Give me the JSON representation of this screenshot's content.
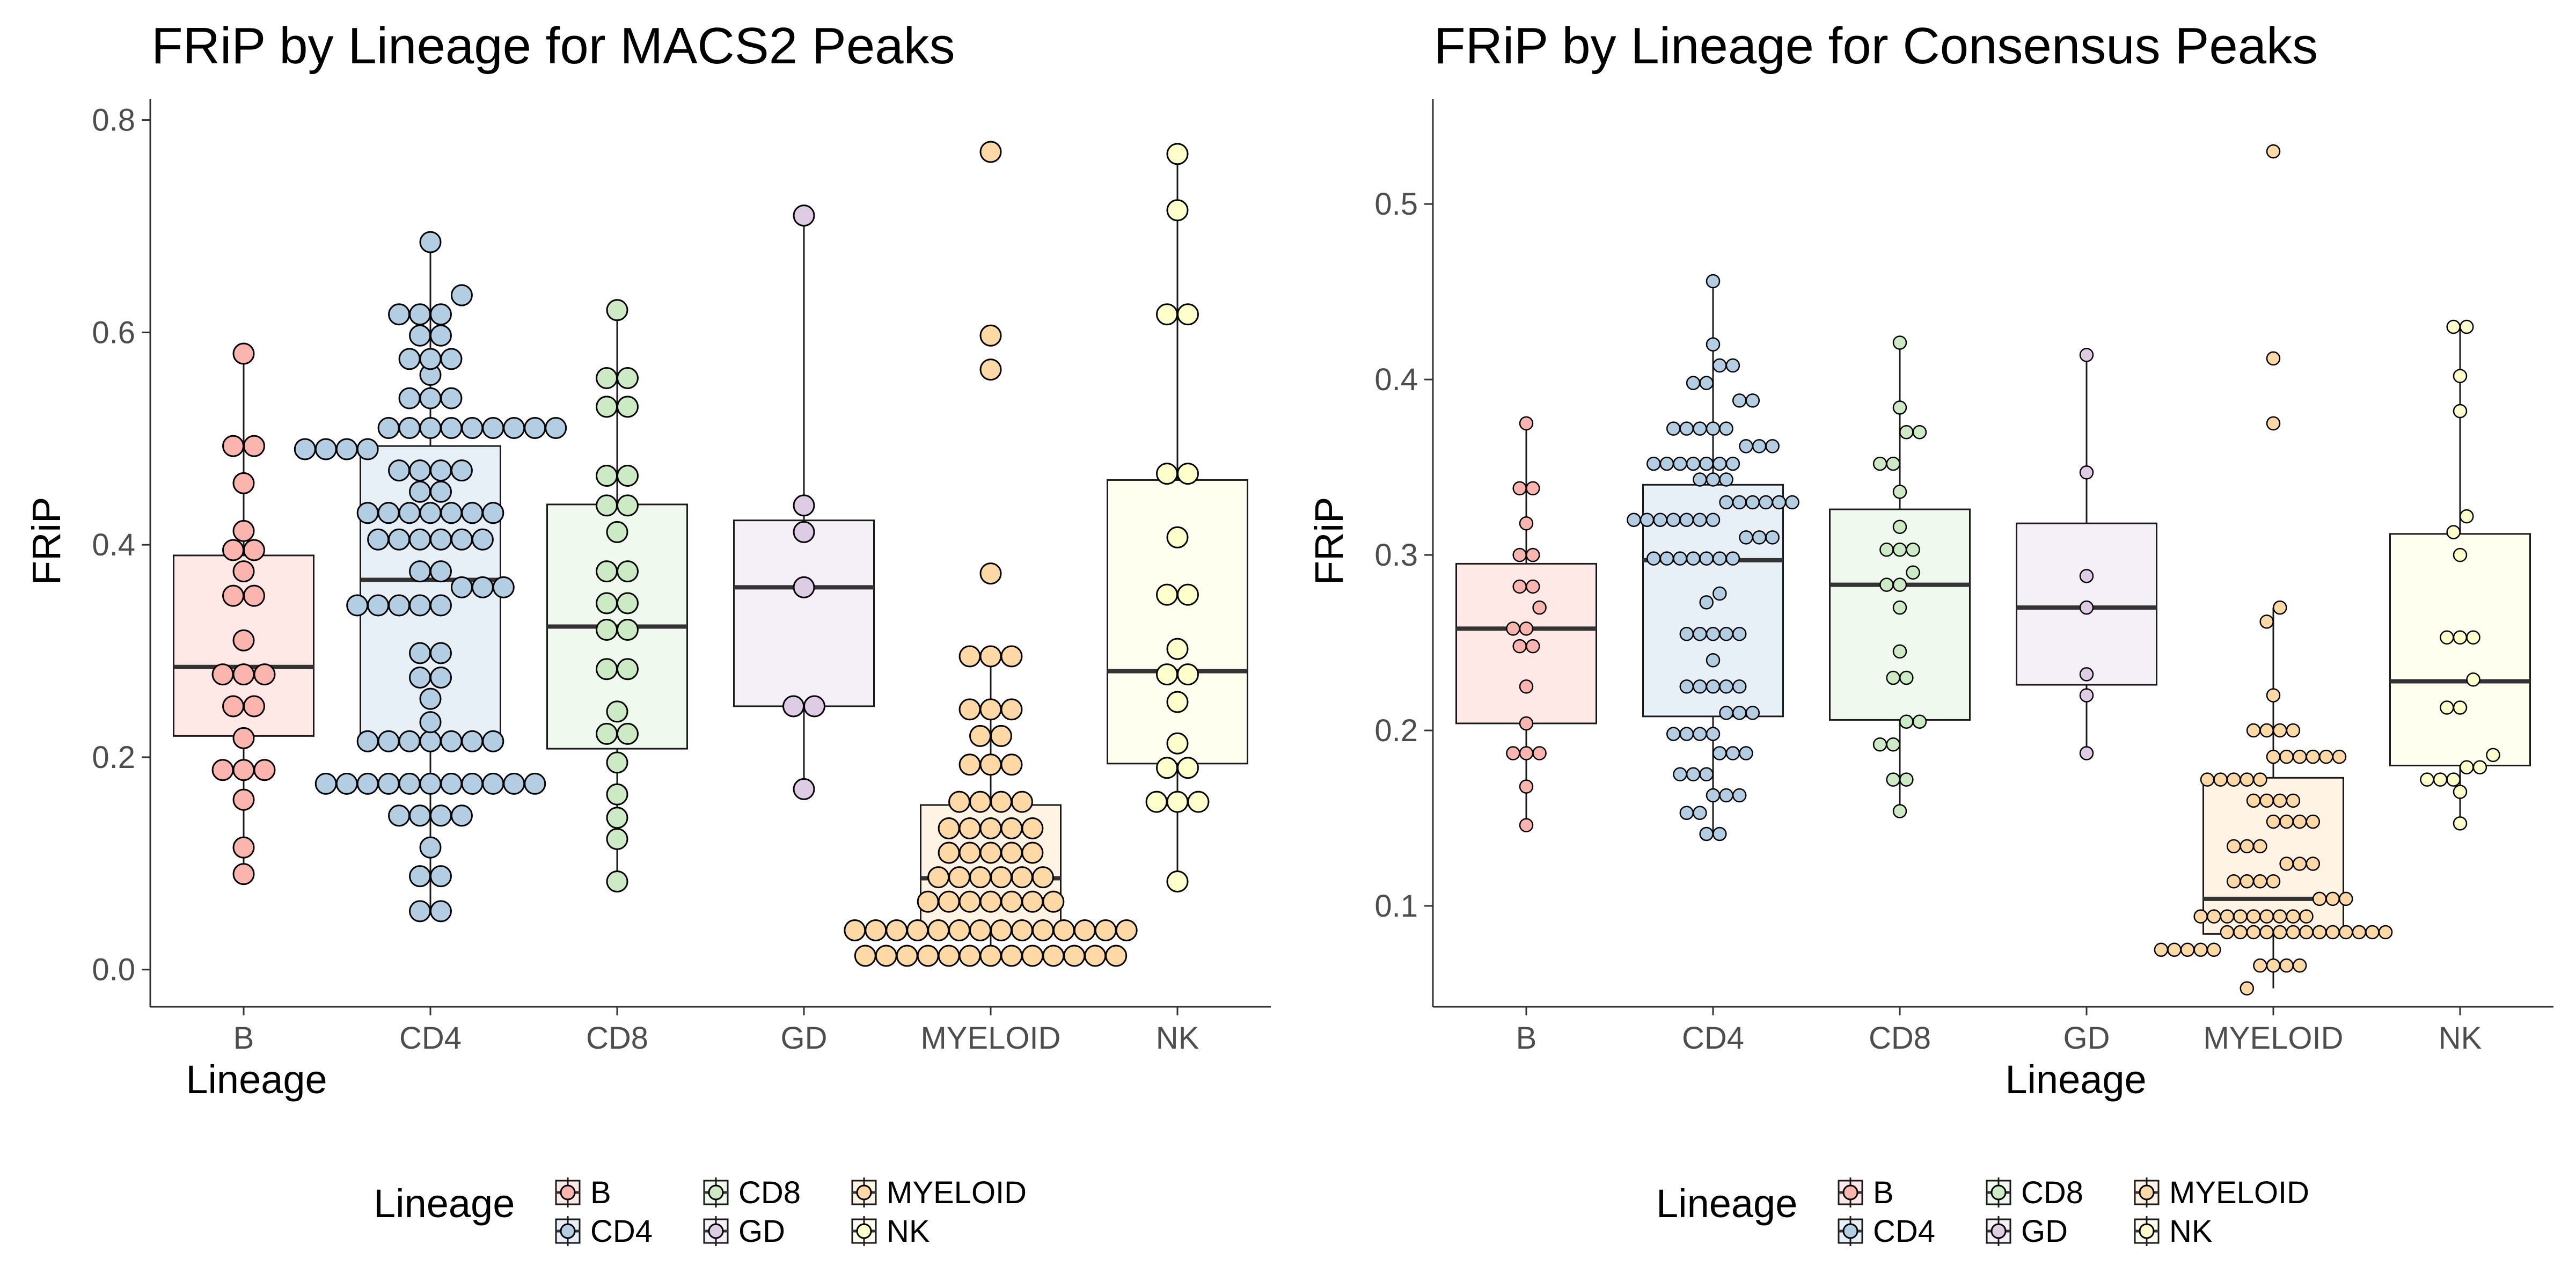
{
  "lineage_colors": {
    "B": "#FBB4AE",
    "CD4": "#B3CDE3",
    "CD8": "#CCEBC5",
    "GD": "#DECBE4",
    "MYELOID": "#FED9A6",
    "NK": "#FFFFCC"
  },
  "legend": {
    "title": "Lineage",
    "items": [
      "B",
      "CD4",
      "CD8",
      "GD",
      "MYELOID",
      "NK"
    ]
  },
  "chart_data": [
    {
      "type": "box",
      "title": "FRiP by Lineage for MACS2 Peaks",
      "xlabel": "Lineage",
      "ylabel": "FRiP",
      "ylim": [
        -0.035,
        0.82
      ],
      "yticks": [
        "0.0",
        "0.2",
        "0.4",
        "0.6",
        "0.8"
      ],
      "categories": [
        "B",
        "CD4",
        "CD8",
        "GD",
        "MYELOID",
        "NK"
      ],
      "grid": false,
      "legend_position": "bottom",
      "boxes": [
        {
          "q1": 0.22,
          "median": 0.285,
          "q3": 0.39,
          "whisker_low": 0.09,
          "whisker_high": 0.58
        },
        {
          "q1": 0.215,
          "median": 0.367,
          "q3": 0.493,
          "whisker_low": 0.055,
          "whisker_high": 0.685
        },
        {
          "q1": 0.208,
          "median": 0.323,
          "q3": 0.438,
          "whisker_low": 0.083,
          "whisker_high": 0.621
        },
        {
          "q1": 0.248,
          "median": 0.36,
          "q3": 0.423,
          "whisker_low": 0.17,
          "whisker_high": 0.71
        },
        {
          "q1": 0.037,
          "median": 0.086,
          "q3": 0.155,
          "whisker_low": 0.013,
          "whisker_high": 0.295
        },
        {
          "q1": 0.194,
          "median": 0.281,
          "q3": 0.461,
          "whisker_low": 0.083,
          "whisker_high": 0.768
        }
      ],
      "series": [
        {
          "name": "B",
          "values": [
            0.09,
            0.115,
            0.16,
            0.188,
            0.188,
            0.188,
            0.218,
            0.248,
            0.248,
            0.278,
            0.278,
            0.278,
            0.31,
            0.352,
            0.352,
            0.375,
            0.395,
            0.395,
            0.413,
            0.458,
            0.493,
            0.493,
            0.58
          ]
        },
        {
          "name": "CD4",
          "values": [
            0.055,
            0.055,
            0.088,
            0.088,
            0.115,
            0.145,
            0.145,
            0.145,
            0.145,
            0.175,
            0.175,
            0.175,
            0.175,
            0.175,
            0.175,
            0.175,
            0.175,
            0.175,
            0.175,
            0.175,
            0.215,
            0.215,
            0.215,
            0.215,
            0.215,
            0.215,
            0.215,
            0.233,
            0.255,
            0.275,
            0.275,
            0.298,
            0.298,
            0.343,
            0.343,
            0.343,
            0.343,
            0.343,
            0.36,
            0.36,
            0.36,
            0.375,
            0.375,
            0.405,
            0.405,
            0.405,
            0.405,
            0.405,
            0.405,
            0.43,
            0.43,
            0.43,
            0.43,
            0.43,
            0.43,
            0.43,
            0.45,
            0.45,
            0.47,
            0.47,
            0.47,
            0.47,
            0.49,
            0.49,
            0.49,
            0.49,
            0.51,
            0.51,
            0.51,
            0.51,
            0.51,
            0.51,
            0.51,
            0.51,
            0.51,
            0.538,
            0.538,
            0.538,
            0.56,
            0.575,
            0.575,
            0.575,
            0.597,
            0.597,
            0.617,
            0.617,
            0.617,
            0.635,
            0.685
          ]
        },
        {
          "name": "CD8",
          "values": [
            0.083,
            0.123,
            0.143,
            0.165,
            0.195,
            0.222,
            0.222,
            0.243,
            0.283,
            0.283,
            0.32,
            0.32,
            0.345,
            0.345,
            0.375,
            0.375,
            0.412,
            0.437,
            0.437,
            0.465,
            0.465,
            0.53,
            0.53,
            0.557,
            0.557,
            0.621
          ]
        },
        {
          "name": "GD",
          "values": [
            0.17,
            0.248,
            0.248,
            0.36,
            0.412,
            0.437,
            0.71
          ]
        },
        {
          "name": "MYELOID",
          "values": [
            0.013,
            0.013,
            0.013,
            0.013,
            0.013,
            0.013,
            0.013,
            0.013,
            0.013,
            0.013,
            0.013,
            0.013,
            0.013,
            0.037,
            0.037,
            0.037,
            0.037,
            0.037,
            0.037,
            0.037,
            0.037,
            0.037,
            0.037,
            0.037,
            0.037,
            0.037,
            0.037,
            0.064,
            0.064,
            0.064,
            0.064,
            0.064,
            0.064,
            0.064,
            0.087,
            0.087,
            0.087,
            0.087,
            0.087,
            0.087,
            0.11,
            0.11,
            0.11,
            0.11,
            0.11,
            0.133,
            0.133,
            0.133,
            0.133,
            0.133,
            0.158,
            0.158,
            0.158,
            0.158,
            0.193,
            0.193,
            0.193,
            0.22,
            0.22,
            0.245,
            0.245,
            0.245,
            0.295,
            0.295,
            0.295,
            0.373,
            0.565,
            0.597,
            0.77
          ]
        },
        {
          "name": "NK",
          "values": [
            0.083,
            0.158,
            0.158,
            0.158,
            0.19,
            0.19,
            0.213,
            0.252,
            0.278,
            0.278,
            0.302,
            0.353,
            0.353,
            0.407,
            0.467,
            0.467,
            0.617,
            0.617,
            0.715,
            0.768
          ]
        }
      ]
    },
    {
      "type": "box",
      "title": "FRiP by Lineage for Consensus Peaks",
      "xlabel": "Lineage",
      "ylabel": "FRiP",
      "ylim": [
        0.0425,
        0.56
      ],
      "yticks": [
        "0.1",
        "0.2",
        "0.3",
        "0.4",
        "0.5"
      ],
      "categories": [
        "B",
        "CD4",
        "CD8",
        "GD",
        "MYELOID",
        "NK"
      ],
      "grid": false,
      "legend_position": "bottom",
      "boxes": [
        {
          "q1": 0.204,
          "median": 0.258,
          "q3": 0.295,
          "whisker_low": 0.146,
          "whisker_high": 0.375
        },
        {
          "q1": 0.208,
          "median": 0.297,
          "q3": 0.34,
          "whisker_low": 0.141,
          "whisker_high": 0.456
        },
        {
          "q1": 0.206,
          "median": 0.283,
          "q3": 0.326,
          "whisker_low": 0.154,
          "whisker_high": 0.421
        },
        {
          "q1": 0.226,
          "median": 0.27,
          "q3": 0.318,
          "whisker_low": 0.187,
          "whisker_high": 0.414
        },
        {
          "q1": 0.084,
          "median": 0.104,
          "q3": 0.173,
          "whisker_low": 0.053,
          "whisker_high": 0.27
        },
        {
          "q1": 0.18,
          "median": 0.228,
          "q3": 0.312,
          "whisker_low": 0.147,
          "whisker_high": 0.43
        }
      ],
      "series": [
        {
          "name": "B",
          "values": [
            0.146,
            0.168,
            0.187,
            0.187,
            0.187,
            0.204,
            0.225,
            0.248,
            0.248,
            0.258,
            0.258,
            0.27,
            0.282,
            0.282,
            0.3,
            0.3,
            0.318,
            0.338,
            0.338,
            0.375
          ]
        },
        {
          "name": "CD4",
          "values": [
            0.141,
            0.141,
            0.153,
            0.153,
            0.163,
            0.163,
            0.163,
            0.175,
            0.175,
            0.175,
            0.187,
            0.187,
            0.187,
            0.198,
            0.198,
            0.198,
            0.198,
            0.21,
            0.21,
            0.21,
            0.225,
            0.225,
            0.225,
            0.225,
            0.225,
            0.24,
            0.255,
            0.255,
            0.255,
            0.255,
            0.255,
            0.273,
            0.278,
            0.298,
            0.298,
            0.298,
            0.298,
            0.298,
            0.298,
            0.298,
            0.31,
            0.31,
            0.31,
            0.32,
            0.32,
            0.32,
            0.32,
            0.32,
            0.32,
            0.32,
            0.33,
            0.33,
            0.33,
            0.33,
            0.33,
            0.33,
            0.343,
            0.343,
            0.343,
            0.352,
            0.352,
            0.352,
            0.352,
            0.352,
            0.352,
            0.352,
            0.362,
            0.362,
            0.362,
            0.372,
            0.372,
            0.372,
            0.372,
            0.372,
            0.388,
            0.388,
            0.398,
            0.398,
            0.408,
            0.408,
            0.42,
            0.456
          ]
        },
        {
          "name": "CD8",
          "values": [
            0.154,
            0.172,
            0.172,
            0.192,
            0.192,
            0.205,
            0.205,
            0.23,
            0.23,
            0.245,
            0.27,
            0.283,
            0.283,
            0.29,
            0.303,
            0.303,
            0.303,
            0.316,
            0.336,
            0.352,
            0.352,
            0.37,
            0.37,
            0.384,
            0.421
          ]
        },
        {
          "name": "GD",
          "values": [
            0.187,
            0.22,
            0.232,
            0.27,
            0.288,
            0.347,
            0.414
          ]
        },
        {
          "name": "MYELOID",
          "values": [
            0.053,
            0.066,
            0.066,
            0.066,
            0.066,
            0.075,
            0.075,
            0.075,
            0.075,
            0.075,
            0.085,
            0.085,
            0.085,
            0.085,
            0.085,
            0.085,
            0.085,
            0.085,
            0.085,
            0.085,
            0.085,
            0.085,
            0.085,
            0.094,
            0.094,
            0.094,
            0.094,
            0.094,
            0.094,
            0.094,
            0.094,
            0.094,
            0.104,
            0.104,
            0.104,
            0.114,
            0.114,
            0.114,
            0.114,
            0.124,
            0.124,
            0.124,
            0.134,
            0.134,
            0.134,
            0.148,
            0.148,
            0.148,
            0.148,
            0.16,
            0.16,
            0.16,
            0.16,
            0.172,
            0.172,
            0.172,
            0.172,
            0.172,
            0.185,
            0.185,
            0.185,
            0.185,
            0.185,
            0.185,
            0.2,
            0.2,
            0.2,
            0.2,
            0.22,
            0.262,
            0.27,
            0.375,
            0.412,
            0.53
          ]
        },
        {
          "name": "NK",
          "values": [
            0.147,
            0.165,
            0.172,
            0.172,
            0.172,
            0.179,
            0.179,
            0.186,
            0.213,
            0.213,
            0.229,
            0.253,
            0.253,
            0.253,
            0.3,
            0.313,
            0.322,
            0.382,
            0.402,
            0.43,
            0.43
          ]
        }
      ]
    }
  ]
}
